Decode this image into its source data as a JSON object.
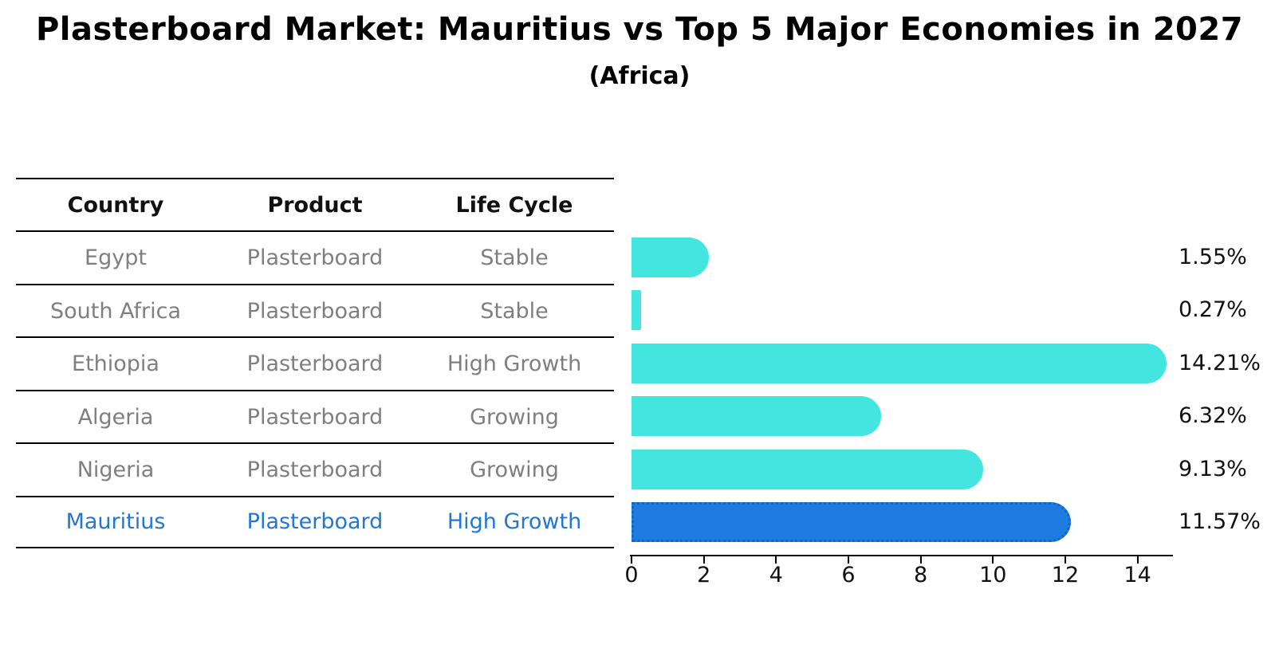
{
  "title": "Plasterboard Market: Mauritius vs Top 5 Major Economies in 2027",
  "subtitle": "(Africa)",
  "table": {
    "headers": [
      "Country",
      "Product",
      "Life Cycle"
    ],
    "rows": [
      {
        "country": "Egypt",
        "product": "Plasterboard",
        "life_cycle": "Stable",
        "highlighted": false
      },
      {
        "country": "South Africa",
        "product": "Plasterboard",
        "life_cycle": "Stable",
        "highlighted": false
      },
      {
        "country": "Ethiopia",
        "product": "Plasterboard",
        "life_cycle": "High Growth",
        "highlighted": false
      },
      {
        "country": "Algeria",
        "product": "Plasterboard",
        "life_cycle": "Growing",
        "highlighted": false
      },
      {
        "country": "Nigeria",
        "product": "Plasterboard",
        "life_cycle": "Growing",
        "highlighted": false
      },
      {
        "country": "Mauritius",
        "product": "Plasterboard",
        "life_cycle": "High Growth",
        "highlighted": true
      }
    ]
  },
  "chart_data": {
    "type": "bar",
    "orientation": "horizontal",
    "categories": [
      "Egypt",
      "South Africa",
      "Ethiopia",
      "Algeria",
      "Nigeria",
      "Mauritius"
    ],
    "values": [
      1.55,
      0.27,
      14.21,
      6.32,
      9.13,
      11.57
    ],
    "value_labels": [
      "1.55%",
      "0.27%",
      "14.21%",
      "6.32%",
      "9.13%",
      "11.57%"
    ],
    "highlighted_category": "Mauritius",
    "title": "Plasterboard Market: Mauritius vs Top 5 Major Economies in 2027",
    "subtitle": "(Africa)",
    "xlabel": "",
    "ylabel": "",
    "x_ticks": [
      0,
      2,
      4,
      6,
      8,
      10,
      12,
      14
    ],
    "xlim": [
      0,
      15
    ],
    "grid": false,
    "legend": false,
    "bar_color": "#42e6de",
    "highlight_bar_color": "#1e7be0",
    "highlight_border_color": "#1563c6",
    "row_text_color": "#7f7f7f",
    "highlight_text_color": "#2277d4"
  }
}
